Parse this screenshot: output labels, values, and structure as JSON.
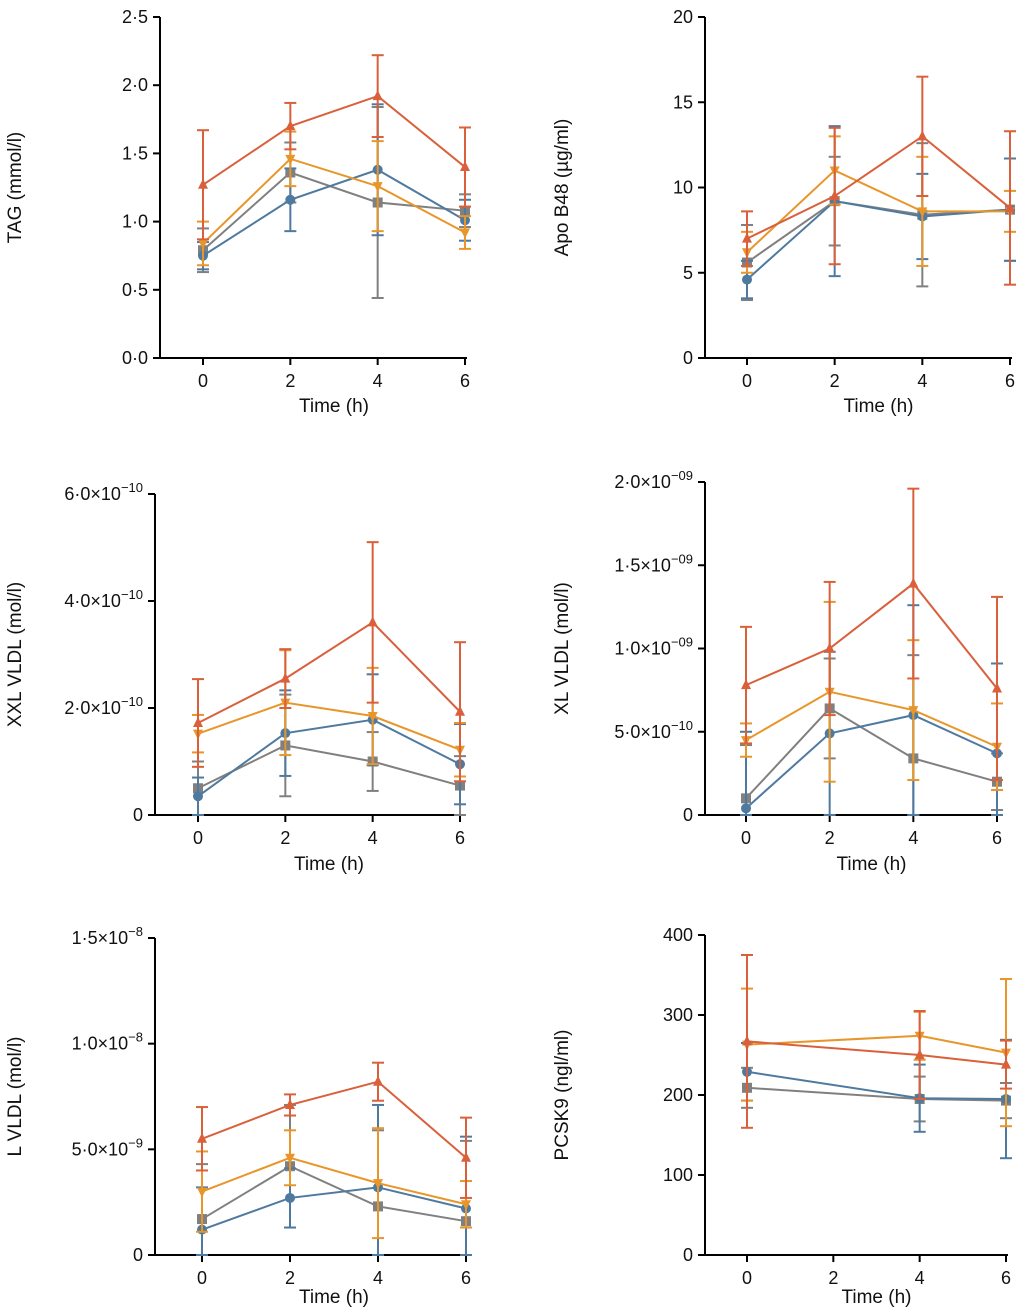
{
  "colors": {
    "red": "#d9603b",
    "orange": "#e8962a",
    "gray": "#808080",
    "blue": "#4f7aa0"
  },
  "chart_data": [
    {
      "type": "line",
      "ylabel": "TAG (mmol/l)",
      "xlabel": "Time (h)",
      "x": [
        0,
        2,
        4,
        6
      ],
      "xticks": [
        "0",
        "2",
        "4",
        "6"
      ],
      "ylim": [
        0,
        2.5
      ],
      "yticks": [
        {
          "v": 0,
          "base": "0·0"
        },
        {
          "v": 0.5,
          "base": "0·5"
        },
        {
          "v": 1,
          "base": "1·0"
        },
        {
          "v": 1.5,
          "base": "1·5"
        },
        {
          "v": 2,
          "base": "2·0"
        },
        {
          "v": 2.5,
          "base": "2·5"
        }
      ],
      "series": [
        {
          "color": "red",
          "marker": "triangle-up",
          "values": [
            1.27,
            1.7,
            1.92,
            1.4
          ],
          "sd": [
            0.4,
            0.17,
            0.3,
            0.29
          ]
        },
        {
          "color": "orange",
          "marker": "triangle-down",
          "values": [
            0.84,
            1.46,
            1.26,
            0.92
          ],
          "sd": [
            0.16,
            0.2,
            0.33,
            0.12
          ]
        },
        {
          "color": "gray",
          "marker": "square",
          "values": [
            0.79,
            1.36,
            1.14,
            1.08
          ],
          "sd": [
            0.16,
            0.22,
            0.7,
            0.12
          ]
        },
        {
          "color": "blue",
          "marker": "circle",
          "values": [
            0.75,
            1.16,
            1.38,
            1.01
          ],
          "sd": [
            0.1,
            0.23,
            0.48,
            0.15
          ]
        }
      ]
    },
    {
      "type": "line",
      "ylabel": "Apo B48 (µg/ml)",
      "xlabel": "Time (h)",
      "x": [
        0,
        2,
        4,
        6
      ],
      "xticks": [
        "0",
        "2",
        "4",
        "6"
      ],
      "ylim": [
        0,
        20
      ],
      "yticks": [
        {
          "v": 0,
          "base": "0"
        },
        {
          "v": 5,
          "base": "5"
        },
        {
          "v": 10,
          "base": "10"
        },
        {
          "v": 15,
          "base": "15"
        },
        {
          "v": 20,
          "base": "20"
        }
      ],
      "series": [
        {
          "color": "red",
          "marker": "triangle-up",
          "values": [
            7.0,
            9.5,
            13.0,
            8.8
          ],
          "sd": [
            1.6,
            4.0,
            3.5,
            4.5
          ]
        },
        {
          "color": "orange",
          "marker": "triangle-down",
          "values": [
            6.2,
            11.0,
            8.6,
            8.6
          ],
          "sd": [
            1.2,
            2.0,
            3.2,
            1.2
          ]
        },
        {
          "color": "gray",
          "marker": "square",
          "values": [
            5.6,
            9.2,
            8.4,
            8.7
          ],
          "sd": [
            2.2,
            2.6,
            4.2,
            3.0
          ]
        },
        {
          "color": "blue",
          "marker": "circle",
          "values": [
            4.6,
            9.2,
            8.3,
            8.7
          ],
          "sd": [
            1.1,
            4.4,
            2.5,
            3.0
          ]
        }
      ]
    },
    {
      "type": "line",
      "ylabel": "XXL VLDL (mol/l)",
      "xlabel": "Time (h)",
      "x": [
        0,
        2,
        4,
        6
      ],
      "xticks": [
        "0",
        "2",
        "4",
        "6"
      ],
      "ylim": [
        0,
        6e-10
      ],
      "yticks": [
        {
          "v": 0,
          "base": "0"
        },
        {
          "v": 2e-10,
          "base": "2·0×10",
          "exp": "−10"
        },
        {
          "v": 4e-10,
          "base": "4·0×10",
          "exp": "−10"
        },
        {
          "v": 6e-10,
          "base": "6·0×10",
          "exp": "−10"
        }
      ],
      "series": [
        {
          "color": "red",
          "marker": "triangle-up",
          "values": [
            1.72e-10,
            2.55e-10,
            3.6e-10,
            1.93e-10
          ],
          "sd": [
            8.2e-11,
            5.5e-11,
            1.5e-10,
            1.3e-10
          ]
        },
        {
          "color": "orange",
          "marker": "triangle-down",
          "values": [
            1.52e-10,
            2.1e-10,
            1.85e-10,
            1.22e-10
          ],
          "sd": [
            3.5e-11,
            9.8e-11,
            9e-11,
            5e-11
          ]
        },
        {
          "color": "gray",
          "marker": "square",
          "values": [
            5e-11,
            1.3e-10,
            1e-10,
            5.5e-11
          ],
          "sd": [
            5e-11,
            9.5e-11,
            5.5e-11,
            5.5e-11
          ]
        },
        {
          "color": "blue",
          "marker": "circle",
          "values": [
            3.5e-11,
            1.53e-10,
            1.78e-10,
            9.5e-11
          ],
          "sd": [
            3.5e-11,
            8e-11,
            8.5e-11,
            7.5e-11
          ]
        }
      ]
    },
    {
      "type": "line",
      "ylabel": "XL VLDL (mol/l)",
      "xlabel": "Time (h)",
      "x": [
        0,
        2,
        4,
        6
      ],
      "xticks": [
        "0",
        "2",
        "4",
        "6"
      ],
      "ylim": [
        0,
        2e-09
      ],
      "yticks": [
        {
          "v": 0,
          "base": "0"
        },
        {
          "v": 5e-10,
          "base": "5·0×10",
          "exp": "−10"
        },
        {
          "v": 1e-09,
          "base": "1·0×10",
          "exp": "−09"
        },
        {
          "v": 1.5e-09,
          "base": "1·5×10",
          "exp": "−09"
        },
        {
          "v": 2e-09,
          "base": "2·0×10",
          "exp": "−09"
        }
      ],
      "series": [
        {
          "color": "red",
          "marker": "triangle-up",
          "values": [
            7.8e-10,
            1e-09,
            1.39e-09,
            7.6e-10
          ],
          "sd": [
            3.5e-10,
            4e-10,
            5.7e-10,
            5.5e-10
          ]
        },
        {
          "color": "orange",
          "marker": "triangle-down",
          "values": [
            4.5e-10,
            7.4e-10,
            6.3e-10,
            4.1e-10
          ],
          "sd": [
            1e-10,
            5.4e-10,
            4.2e-10,
            2.6e-10
          ]
        },
        {
          "color": "gray",
          "marker": "square",
          "values": [
            1e-10,
            6.4e-10,
            3.4e-10,
            2e-10
          ],
          "sd": [
            3.2e-10,
            3e-10,
            6.2e-10,
            1.7e-10
          ]
        },
        {
          "color": "blue",
          "marker": "circle",
          "values": [
            4e-11,
            4.9e-10,
            6e-10,
            3.7e-10
          ],
          "sd": [
            4.6e-10,
            4.9e-10,
            6.6e-10,
            5.4e-10
          ]
        }
      ]
    },
    {
      "type": "line",
      "ylabel": "L VLDL (mol/l)",
      "xlabel": "Time (h)",
      "x": [
        0,
        2,
        4,
        6
      ],
      "xticks": [
        "0",
        "2",
        "4",
        "6"
      ],
      "ylim": [
        0,
        1.5e-08
      ],
      "yticks": [
        {
          "v": 0,
          "base": "0"
        },
        {
          "v": 5e-09,
          "base": "5·0×10",
          "exp": "−9"
        },
        {
          "v": 1e-08,
          "base": "1·0×10",
          "exp": "−8"
        },
        {
          "v": 1.5e-08,
          "base": "1·5×10",
          "exp": "−8"
        }
      ],
      "series": [
        {
          "color": "red",
          "marker": "triangle-up",
          "values": [
            5.5e-09,
            7.1e-09,
            8.2e-09,
            4.6e-09
          ],
          "sd": [
            1.5e-09,
            5e-10,
            9e-10,
            1.9e-09
          ]
        },
        {
          "color": "orange",
          "marker": "triangle-down",
          "values": [
            3e-09,
            4.6e-09,
            3.4e-09,
            2.4e-09
          ],
          "sd": [
            1.9e-09,
            1.3e-09,
            2.6e-09,
            1.1e-09
          ]
        },
        {
          "color": "gray",
          "marker": "square",
          "values": [
            1.7e-09,
            4.2e-09,
            2.3e-09,
            1.6e-09
          ],
          "sd": [
            2.6e-09,
            2.9e-09,
            3.6e-09,
            3.8e-09
          ]
        },
        {
          "color": "blue",
          "marker": "circle",
          "values": [
            1.2e-09,
            2.7e-09,
            3.2e-09,
            2.2e-09
          ],
          "sd": [
            2e-09,
            1.4e-09,
            3.9e-09,
            3.4e-09
          ]
        }
      ]
    },
    {
      "type": "line",
      "ylabel": "PCSK9 (ngl/ml)",
      "xlabel": "Time (h)",
      "x": [
        0,
        4,
        6
      ],
      "xticks": [
        "0",
        "2",
        "4",
        "6"
      ],
      "xtick_values": [
        0,
        2,
        4,
        6
      ],
      "ylim": [
        0,
        400
      ],
      "yticks": [
        {
          "v": 0,
          "base": "0"
        },
        {
          "v": 100,
          "base": "100"
        },
        {
          "v": 200,
          "base": "200"
        },
        {
          "v": 300,
          "base": "300"
        },
        {
          "v": 400,
          "base": "400"
        }
      ],
      "series": [
        {
          "color": "red",
          "marker": "triangle-up",
          "values": [
            267,
            250,
            238
          ],
          "sd": [
            108,
            55,
            30
          ]
        },
        {
          "color": "orange",
          "marker": "triangle-down",
          "values": [
            263,
            274,
            253
          ],
          "sd": [
            70,
            30,
            92
          ]
        },
        {
          "color": "gray",
          "marker": "square",
          "values": [
            209,
            195,
            193
          ],
          "sd": [
            25,
            28,
            22
          ]
        },
        {
          "color": "blue",
          "marker": "circle",
          "values": [
            229,
            196,
            195
          ],
          "sd": [
            36,
            42,
            74
          ]
        }
      ]
    }
  ]
}
